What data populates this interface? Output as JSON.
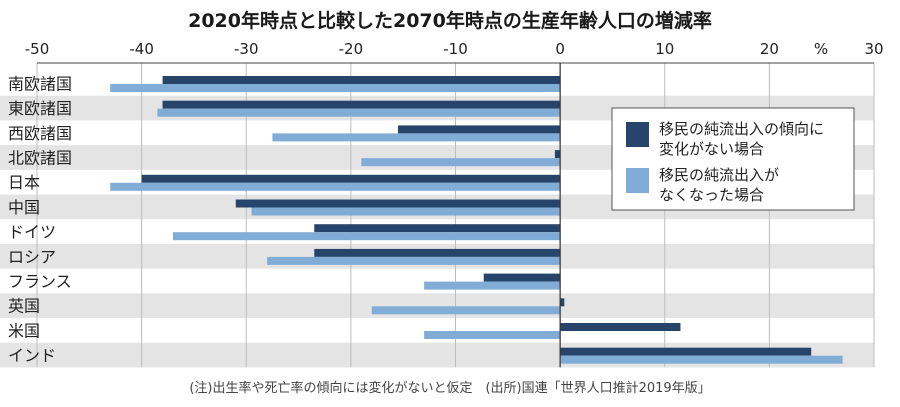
{
  "chart_data": {
    "type": "bar",
    "orientation": "horizontal",
    "title": "2020年時点と比較した2070年時点の生産年齢人口の増減率",
    "unit_label": "%",
    "xlim": [
      -50,
      30
    ],
    "xticks": [
      -50,
      -40,
      -30,
      -20,
      -10,
      0,
      10,
      20,
      30
    ],
    "xtick_labels": [
      "-50",
      "-40",
      "-30",
      "-20",
      "-10",
      "0",
      "10",
      "20",
      "30"
    ],
    "categories": [
      "南欧諸国",
      "東欧諸国",
      "西欧諸国",
      "北欧諸国",
      "日本",
      "中国",
      "ドイツ",
      "ロシア",
      "フランス",
      "英国",
      "米国",
      "インド"
    ],
    "series": [
      {
        "name": "移民の純流出入の傾向に変化がない場合",
        "legend_lines": [
          "移民の純流出入の傾向に",
          "変化がない場合"
        ],
        "color": "#27456b",
        "values": [
          -38,
          -38,
          -15.5,
          -0.5,
          -40,
          -31,
          -23.5,
          -23.5,
          -7.3,
          0.4,
          11.5,
          24
        ]
      },
      {
        "name": "移民の純流出入がなくなった場合",
        "legend_lines": [
          "移民の純流出入が",
          "なくなった場合"
        ],
        "color": "#80acd6",
        "values": [
          -43,
          -38.5,
          -27.5,
          -19,
          -43,
          -29.5,
          -37,
          -28,
          -13,
          -18,
          -13,
          27
        ]
      }
    ],
    "legend_position": "right",
    "row_shading": true,
    "footnote": "(注)出生率や死亡率の傾向には変化がないと仮定　(出所)国連「世界人口推計2019年版」"
  }
}
